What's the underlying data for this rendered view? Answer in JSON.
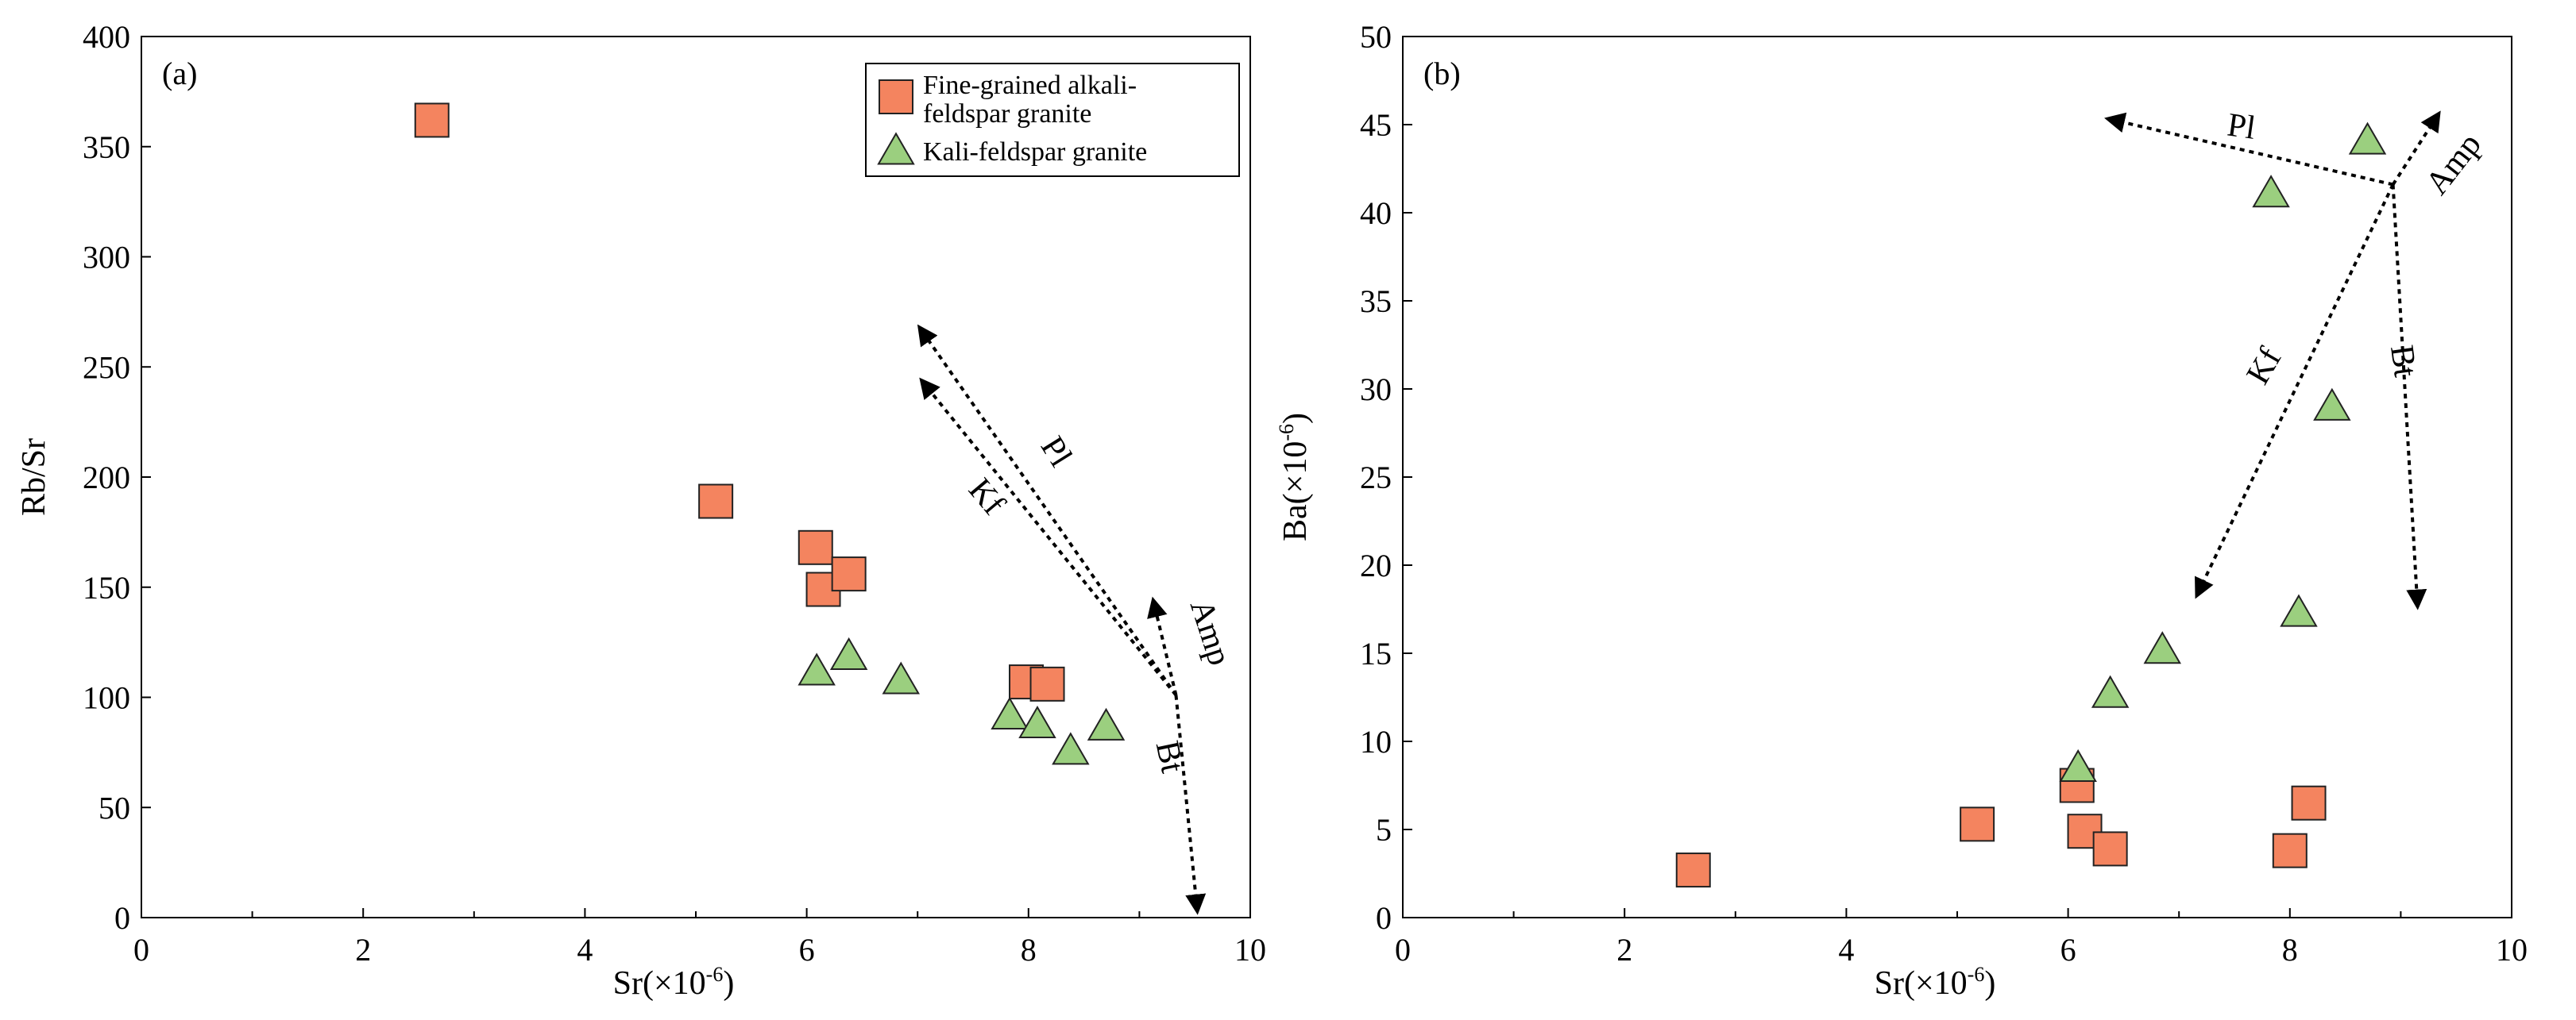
{
  "colors": {
    "fine_grained_fill": "#F4845F",
    "kali_feldspar_fill": "#9BCF7F",
    "marker_stroke": "#222222",
    "axis": "#000000",
    "vector": "#000000"
  },
  "legend": {
    "items": [
      {
        "lines": [
          "Fine-grained alkali-",
          "feldspar granite"
        ],
        "marker": "square"
      },
      {
        "lines": [
          "Kali-feldspar granite"
        ],
        "marker": "triangle"
      }
    ]
  },
  "chart_data": [
    {
      "panel_label": "(a)",
      "type": "scatter",
      "xlabel": "Sr(×10⁻⁶)",
      "ylabel": "Rb/Sr",
      "xlim": [
        0,
        10
      ],
      "ylim": [
        0,
        400
      ],
      "xticks": [
        0,
        2,
        4,
        6,
        8,
        10
      ],
      "xticks_minor": [
        1,
        3,
        5,
        7,
        9
      ],
      "yticks": [
        0,
        50,
        100,
        150,
        200,
        250,
        300,
        350,
        400
      ],
      "grid": false,
      "legend_position": "top-right",
      "series": [
        {
          "name": "Fine-grained alkali-feldspar granite",
          "marker": "square",
          "points": [
            [
              2.62,
              362
            ],
            [
              5.18,
              189
            ],
            [
              6.08,
              168
            ],
            [
              6.15,
              149
            ],
            [
              6.38,
              156
            ],
            [
              7.98,
              107
            ],
            [
              8.17,
              106
            ]
          ]
        },
        {
          "name": "Kali-feldspar granite",
          "marker": "triangle",
          "points": [
            [
              6.09,
              111
            ],
            [
              6.38,
              118
            ],
            [
              6.85,
              107
            ],
            [
              7.83,
              91
            ],
            [
              8.08,
              87
            ],
            [
              8.38,
              75
            ],
            [
              8.7,
              86
            ]
          ]
        }
      ],
      "vectors": [
        {
          "label": "Pl",
          "from": [
            9.33,
            101
          ],
          "to": [
            7.03,
            267
          ],
          "label_at": [
            8.17,
            209
          ],
          "label_angle": 58
        },
        {
          "label": "Kf",
          "from": [
            9.33,
            101
          ],
          "to": [
            7.05,
            243
          ],
          "label_at": [
            7.55,
            188
          ],
          "label_angle": 50
        },
        {
          "label": "Amp",
          "from": [
            9.33,
            101
          ],
          "to": [
            9.13,
            143
          ],
          "label_at": [
            9.55,
            128
          ],
          "label_angle": 72
        },
        {
          "label": "Bt",
          "from": [
            9.33,
            101
          ],
          "to": [
            9.52,
            4
          ],
          "label_at": [
            9.18,
            72
          ],
          "label_angle": 78
        }
      ]
    },
    {
      "panel_label": "(b)",
      "type": "scatter",
      "xlabel": "Sr(×10⁻⁶)",
      "ylabel": "Ba(×10⁻⁶)",
      "xlim": [
        0,
        10
      ],
      "ylim": [
        0,
        50
      ],
      "xticks": [
        0,
        2,
        4,
        6,
        8,
        10
      ],
      "xticks_minor": [
        1,
        3,
        5,
        7,
        9
      ],
      "yticks": [
        0,
        5,
        10,
        15,
        20,
        25,
        30,
        35,
        40,
        45,
        50
      ],
      "grid": false,
      "series": [
        {
          "name": "Fine-grained alkali-feldspar granite",
          "marker": "square",
          "points": [
            [
              2.62,
              2.7
            ],
            [
              5.18,
              5.3
            ],
            [
              6.08,
              7.5
            ],
            [
              6.15,
              4.9
            ],
            [
              6.38,
              3.9
            ],
            [
              8.0,
              3.8
            ],
            [
              8.17,
              6.5
            ]
          ]
        },
        {
          "name": "Kali-feldspar granite",
          "marker": "triangle",
          "points": [
            [
              6.09,
              8.4
            ],
            [
              6.38,
              12.6
            ],
            [
              6.85,
              15.1
            ],
            [
              7.83,
              41.0
            ],
            [
              8.08,
              17.2
            ],
            [
              8.38,
              28.9
            ],
            [
              8.7,
              44.0
            ]
          ]
        }
      ],
      "vectors": [
        {
          "label": "Pl",
          "from": [
            8.93,
            41.6
          ],
          "to": [
            6.38,
            45.3
          ],
          "label_at": [
            7.55,
            44.3
          ],
          "label_angle": 8
        },
        {
          "label": "Amp",
          "from": [
            8.93,
            41.6
          ],
          "to": [
            9.33,
            45.5
          ],
          "label_at": [
            9.55,
            42.4
          ],
          "label_angle": -52
        },
        {
          "label": "Kf",
          "from": [
            8.93,
            41.6
          ],
          "to": [
            7.17,
            18.4
          ],
          "label_at": [
            7.85,
            31.0
          ],
          "label_angle": -60
        },
        {
          "label": "Bt",
          "from": [
            8.93,
            41.6
          ],
          "to": [
            9.15,
            17.8
          ],
          "label_at": [
            8.93,
            31.5
          ],
          "label_angle": 82
        }
      ]
    }
  ]
}
